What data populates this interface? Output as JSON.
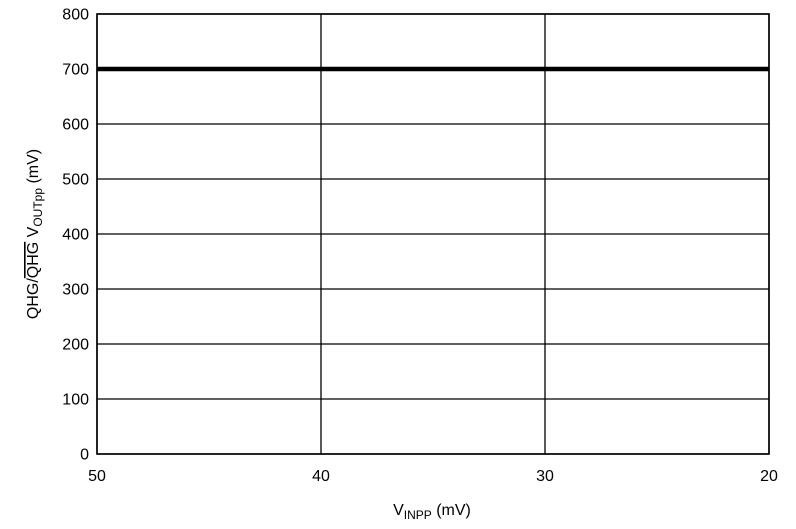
{
  "chart_data": {
    "type": "line",
    "title": "",
    "x_axis": {
      "label_main": "V",
      "label_sub": "INPP",
      "label_unit": " (mV)",
      "range": [
        50,
        20
      ],
      "ticks": [
        50,
        40,
        30,
        20
      ],
      "tick_labels": [
        "50",
        "40",
        "30",
        "20"
      ],
      "reversed": true
    },
    "y_axis": {
      "label_prefix": "QHG/",
      "label_overline": "QHG",
      "label_v": " V",
      "label_sub": "OUTpp",
      "label_unit": " (mV)",
      "range": [
        0,
        800
      ],
      "ticks": [
        0,
        100,
        200,
        300,
        400,
        500,
        600,
        700,
        800
      ],
      "tick_labels": [
        "0",
        "100",
        "200",
        "300",
        "400",
        "500",
        "600",
        "700",
        "800"
      ]
    },
    "grid": true,
    "series": [
      {
        "x": [
          50,
          40,
          30,
          20
        ],
        "y": [
          700,
          700,
          700,
          700
        ],
        "color": "#000000"
      }
    ]
  }
}
